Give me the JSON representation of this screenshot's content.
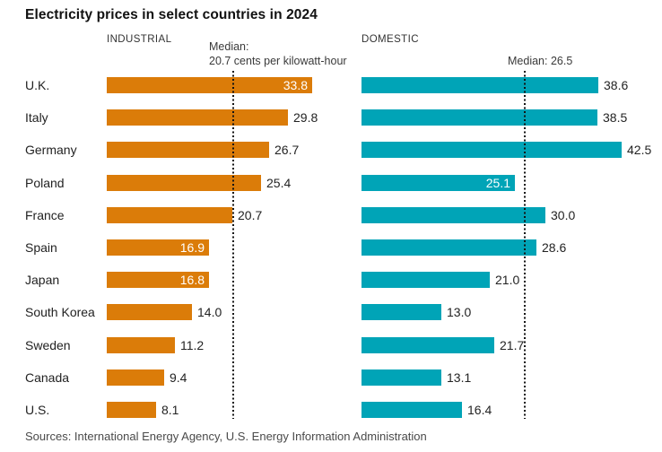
{
  "title": "Electricity prices in select countries in 2024",
  "source_line": "Sources: International Energy Agency, U.S. Energy Information Administration",
  "colors": {
    "industrial_bar": "#DB7C09",
    "domestic_bar": "#00A4B7",
    "median_line": "#141414",
    "title_text": "#111111",
    "value_text": "#232323",
    "inside_value_text": "#ffffff",
    "source_text": "#4a4a4a"
  },
  "chart_data": {
    "type": "bar",
    "orientation": "horizontal",
    "unit": "cents per kilowatt-hour",
    "grid": false,
    "legend_position": "none",
    "xlim": [
      0,
      45
    ],
    "categories": [
      "U.K.",
      "Italy",
      "Germany",
      "Poland",
      "France",
      "Spain",
      "Japan",
      "South Korea",
      "Sweden",
      "Canada",
      "U.S."
    ],
    "series": [
      {
        "name": "INDUSTRIAL",
        "color": "#DB7C09",
        "median": 20.7,
        "median_label_lines": [
          "Median:",
          "20.7 cents per kilowatt-hour"
        ],
        "values": [
          33.8,
          29.8,
          26.7,
          25.4,
          20.7,
          16.9,
          16.8,
          14.0,
          11.2,
          9.4,
          8.1
        ],
        "value_label_inside": [
          true,
          false,
          false,
          false,
          false,
          true,
          true,
          false,
          false,
          false,
          false
        ]
      },
      {
        "name": "DOMESTIC",
        "color": "#00A4B7",
        "median": 26.5,
        "median_label_lines": [
          "Median: 26.5"
        ],
        "values": [
          38.6,
          38.5,
          42.5,
          25.1,
          30.0,
          28.6,
          21.0,
          13.0,
          21.7,
          13.1,
          16.4
        ],
        "value_label_inside": [
          false,
          false,
          false,
          true,
          false,
          false,
          false,
          false,
          false,
          false,
          false
        ]
      }
    ]
  }
}
